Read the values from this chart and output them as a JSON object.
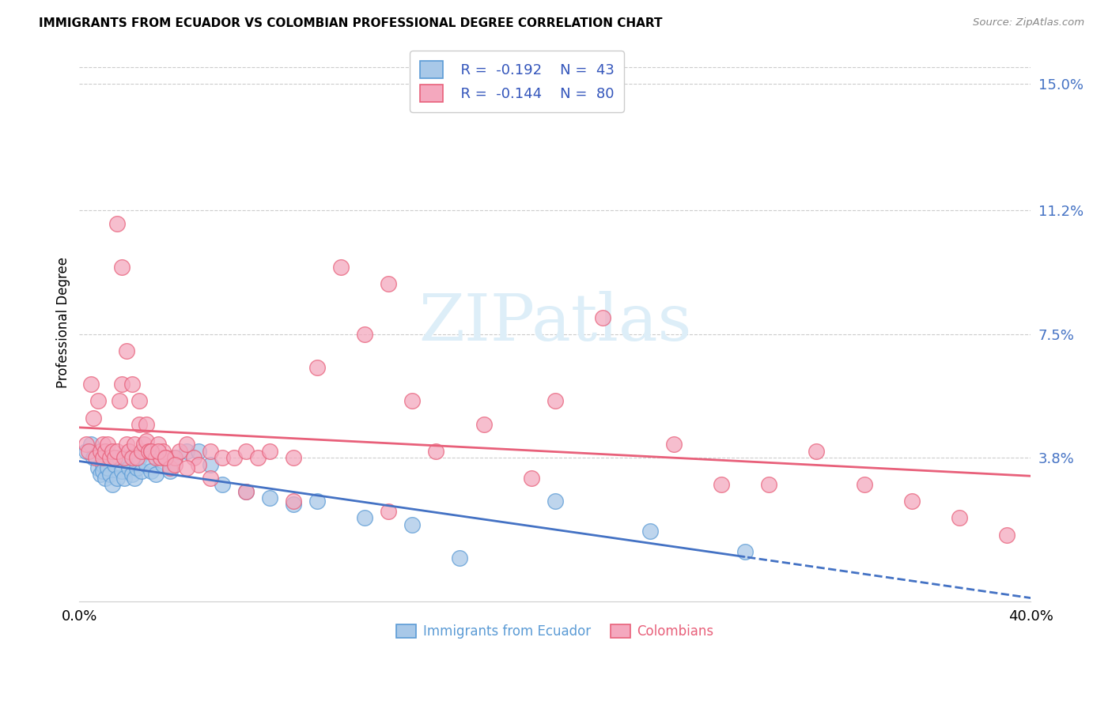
{
  "title": "IMMIGRANTS FROM ECUADOR VS COLOMBIAN PROFESSIONAL DEGREE CORRELATION CHART",
  "source": "Source: ZipAtlas.com",
  "ylabel": "Professional Degree",
  "ytick_labels": [
    "3.8%",
    "7.5%",
    "11.2%",
    "15.0%"
  ],
  "ytick_values": [
    0.038,
    0.075,
    0.112,
    0.15
  ],
  "xlim": [
    0.0,
    0.4
  ],
  "ylim": [
    -0.005,
    0.162
  ],
  "ecuador_color": "#a8c8e8",
  "colombia_color": "#f4a8be",
  "ecuador_edge_color": "#5b9bd5",
  "colombia_edge_color": "#e8607a",
  "ecuador_line_color": "#4472c4",
  "colombia_line_color": "#e8607a",
  "watermark_color": "#ddeef8",
  "ecuador_r": "-0.192",
  "ecuador_n": "43",
  "colombia_r": "-0.144",
  "colombia_n": "80",
  "ecuador_scatter_x": [
    0.003,
    0.005,
    0.006,
    0.008,
    0.009,
    0.01,
    0.01,
    0.011,
    0.012,
    0.013,
    0.014,
    0.015,
    0.016,
    0.017,
    0.018,
    0.019,
    0.02,
    0.021,
    0.022,
    0.023,
    0.024,
    0.025,
    0.026,
    0.028,
    0.03,
    0.032,
    0.035,
    0.038,
    0.04,
    0.045,
    0.05,
    0.055,
    0.06,
    0.07,
    0.08,
    0.09,
    0.1,
    0.12,
    0.14,
    0.16,
    0.2,
    0.24,
    0.28
  ],
  "ecuador_scatter_y": [
    0.04,
    0.042,
    0.038,
    0.035,
    0.033,
    0.036,
    0.034,
    0.032,
    0.035,
    0.033,
    0.03,
    0.036,
    0.032,
    0.038,
    0.034,
    0.032,
    0.038,
    0.035,
    0.033,
    0.032,
    0.035,
    0.038,
    0.034,
    0.036,
    0.034,
    0.033,
    0.036,
    0.034,
    0.038,
    0.04,
    0.04,
    0.036,
    0.03,
    0.028,
    0.026,
    0.024,
    0.025,
    0.02,
    0.018,
    0.008,
    0.025,
    0.016,
    0.01
  ],
  "colombia_scatter_x": [
    0.003,
    0.004,
    0.005,
    0.006,
    0.007,
    0.008,
    0.009,
    0.01,
    0.01,
    0.011,
    0.012,
    0.013,
    0.014,
    0.015,
    0.016,
    0.017,
    0.018,
    0.019,
    0.02,
    0.021,
    0.022,
    0.023,
    0.024,
    0.025,
    0.026,
    0.027,
    0.028,
    0.029,
    0.03,
    0.032,
    0.033,
    0.034,
    0.035,
    0.036,
    0.038,
    0.04,
    0.042,
    0.045,
    0.048,
    0.05,
    0.055,
    0.06,
    0.065,
    0.07,
    0.075,
    0.08,
    0.09,
    0.1,
    0.11,
    0.12,
    0.13,
    0.14,
    0.15,
    0.17,
    0.19,
    0.2,
    0.22,
    0.25,
    0.27,
    0.29,
    0.31,
    0.33,
    0.35,
    0.37,
    0.39,
    0.016,
    0.018,
    0.02,
    0.022,
    0.025,
    0.028,
    0.03,
    0.033,
    0.036,
    0.04,
    0.045,
    0.055,
    0.07,
    0.09,
    0.13
  ],
  "colombia_scatter_y": [
    0.042,
    0.04,
    0.06,
    0.05,
    0.038,
    0.055,
    0.04,
    0.042,
    0.038,
    0.04,
    0.042,
    0.038,
    0.04,
    0.038,
    0.04,
    0.055,
    0.06,
    0.038,
    0.042,
    0.04,
    0.038,
    0.042,
    0.038,
    0.048,
    0.04,
    0.042,
    0.043,
    0.04,
    0.04,
    0.038,
    0.042,
    0.038,
    0.04,
    0.038,
    0.035,
    0.038,
    0.04,
    0.042,
    0.038,
    0.036,
    0.04,
    0.038,
    0.038,
    0.04,
    0.038,
    0.04,
    0.038,
    0.065,
    0.095,
    0.075,
    0.09,
    0.055,
    0.04,
    0.048,
    0.032,
    0.055,
    0.08,
    0.042,
    0.03,
    0.03,
    0.04,
    0.03,
    0.025,
    0.02,
    0.015,
    0.108,
    0.095,
    0.07,
    0.06,
    0.055,
    0.048,
    0.04,
    0.04,
    0.038,
    0.036,
    0.035,
    0.032,
    0.028,
    0.025,
    0.022
  ]
}
